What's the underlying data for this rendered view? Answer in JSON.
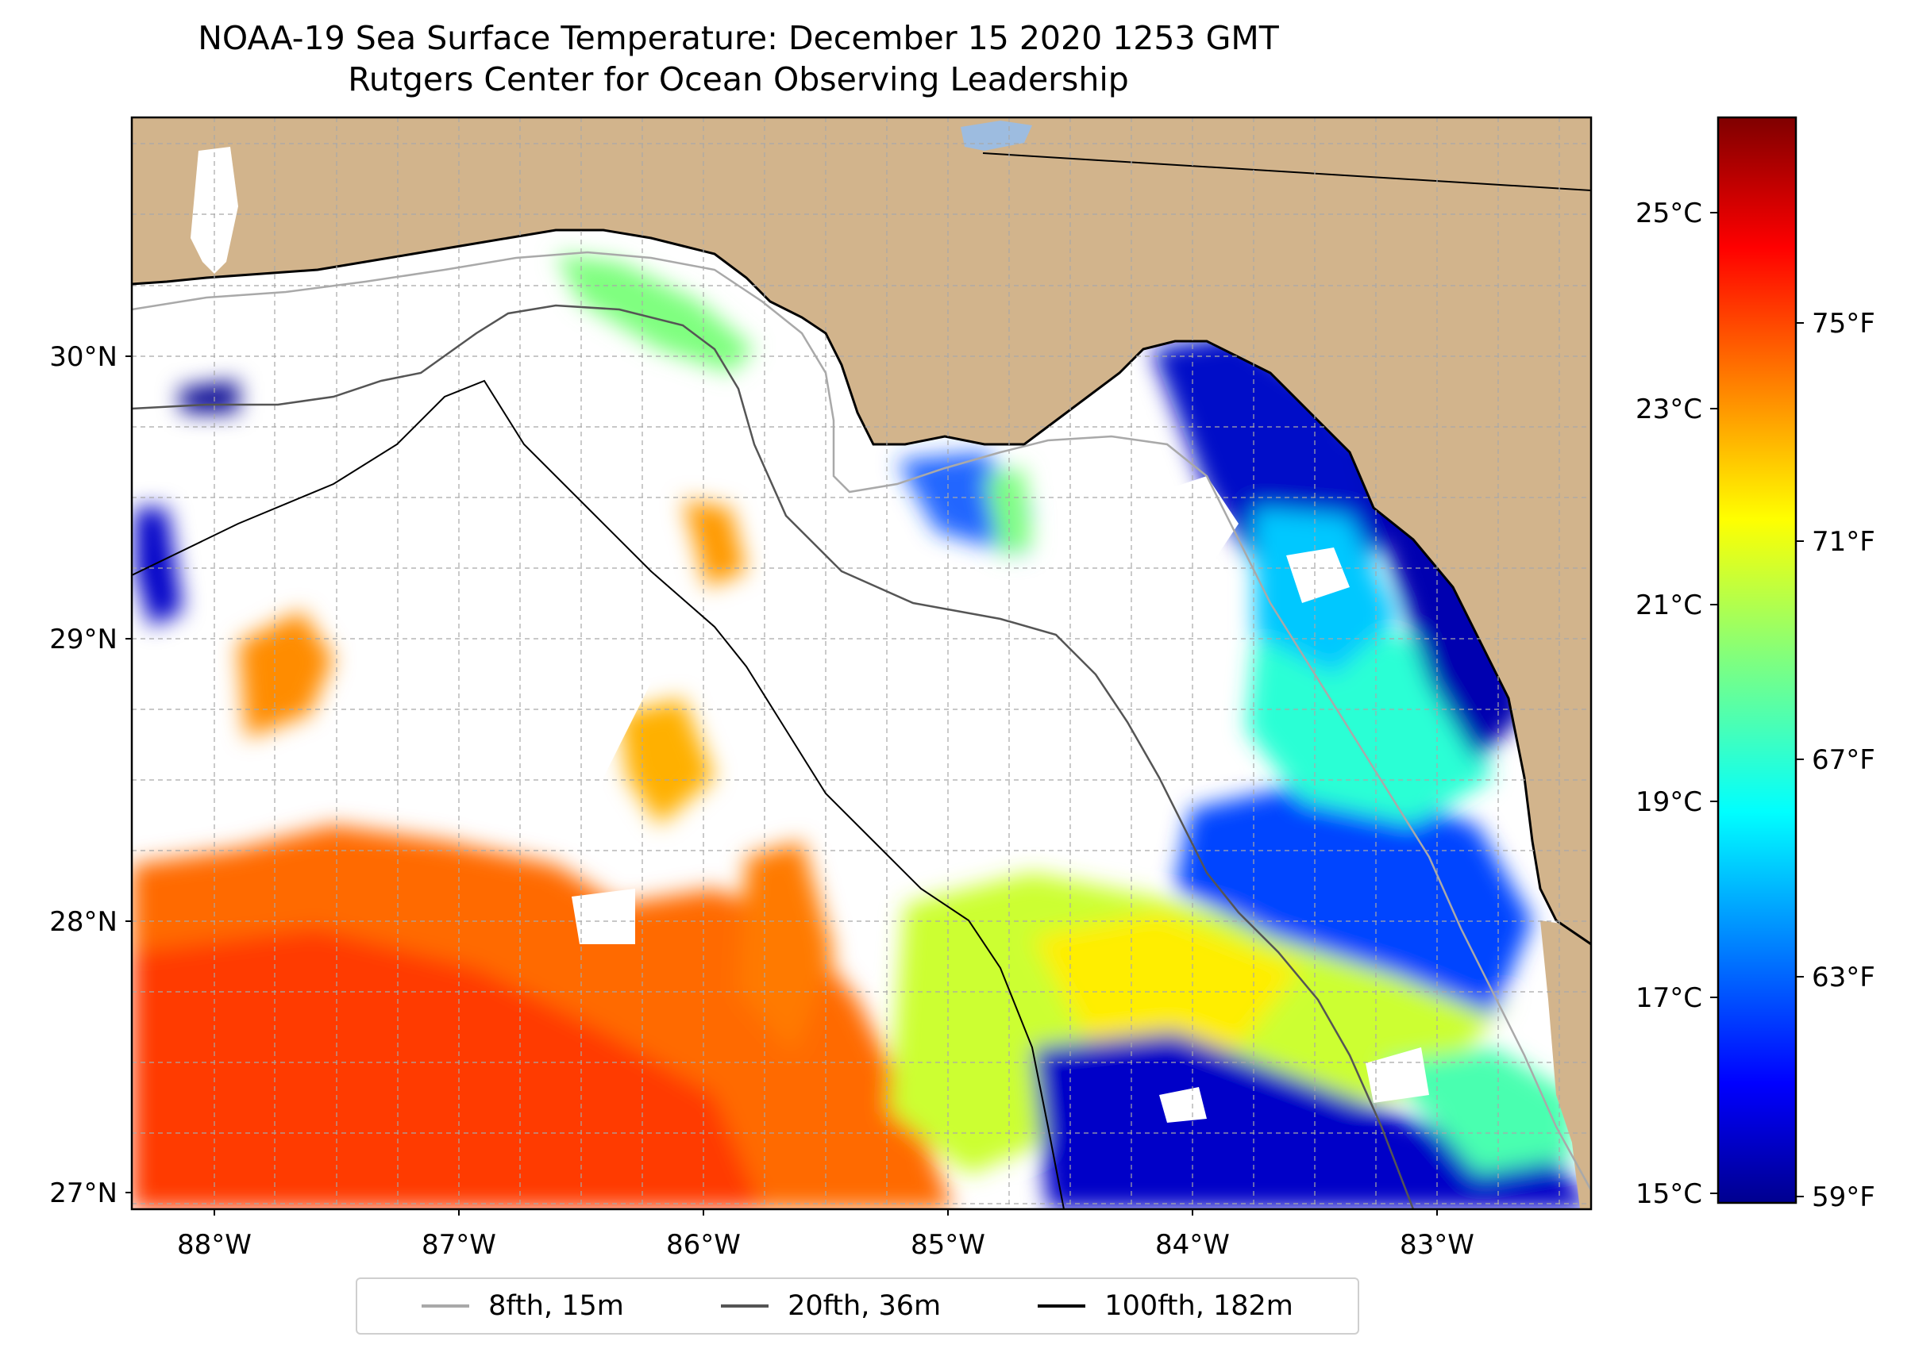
{
  "title_line1": "NOAA-19 Sea Surface Temperature: December 15 2020 1253 GMT",
  "title_line2": "Rutgers Center for Ocean Observing Leadership",
  "lat_labels": [
    "30°N",
    "29°N",
    "28°N",
    "27°N"
  ],
  "lon_labels": [
    "88°W",
    "87°W",
    "86°W",
    "85°W",
    "84°W",
    "83°W"
  ],
  "colorbar": {
    "celsius_labels": [
      "25°C",
      "23°C",
      "21°C",
      "19°C",
      "17°C",
      "15°C"
    ],
    "fahrenheit_labels": [
      "75°F",
      "71°F",
      "67°F",
      "63°F",
      "59°F"
    ],
    "colormap": "jet"
  },
  "legend": [
    {
      "label": "8fth, 15m",
      "color": "#a9a9a9"
    },
    {
      "label": "20fth, 36m",
      "color": "#555555"
    },
    {
      "label": "100fth, 182m",
      "color": "#000000"
    }
  ],
  "colors": {
    "land": "#d2b48c",
    "no_data": "#ffffff",
    "grid": "#bdbdbd",
    "lake": "#9dbce0"
  }
}
